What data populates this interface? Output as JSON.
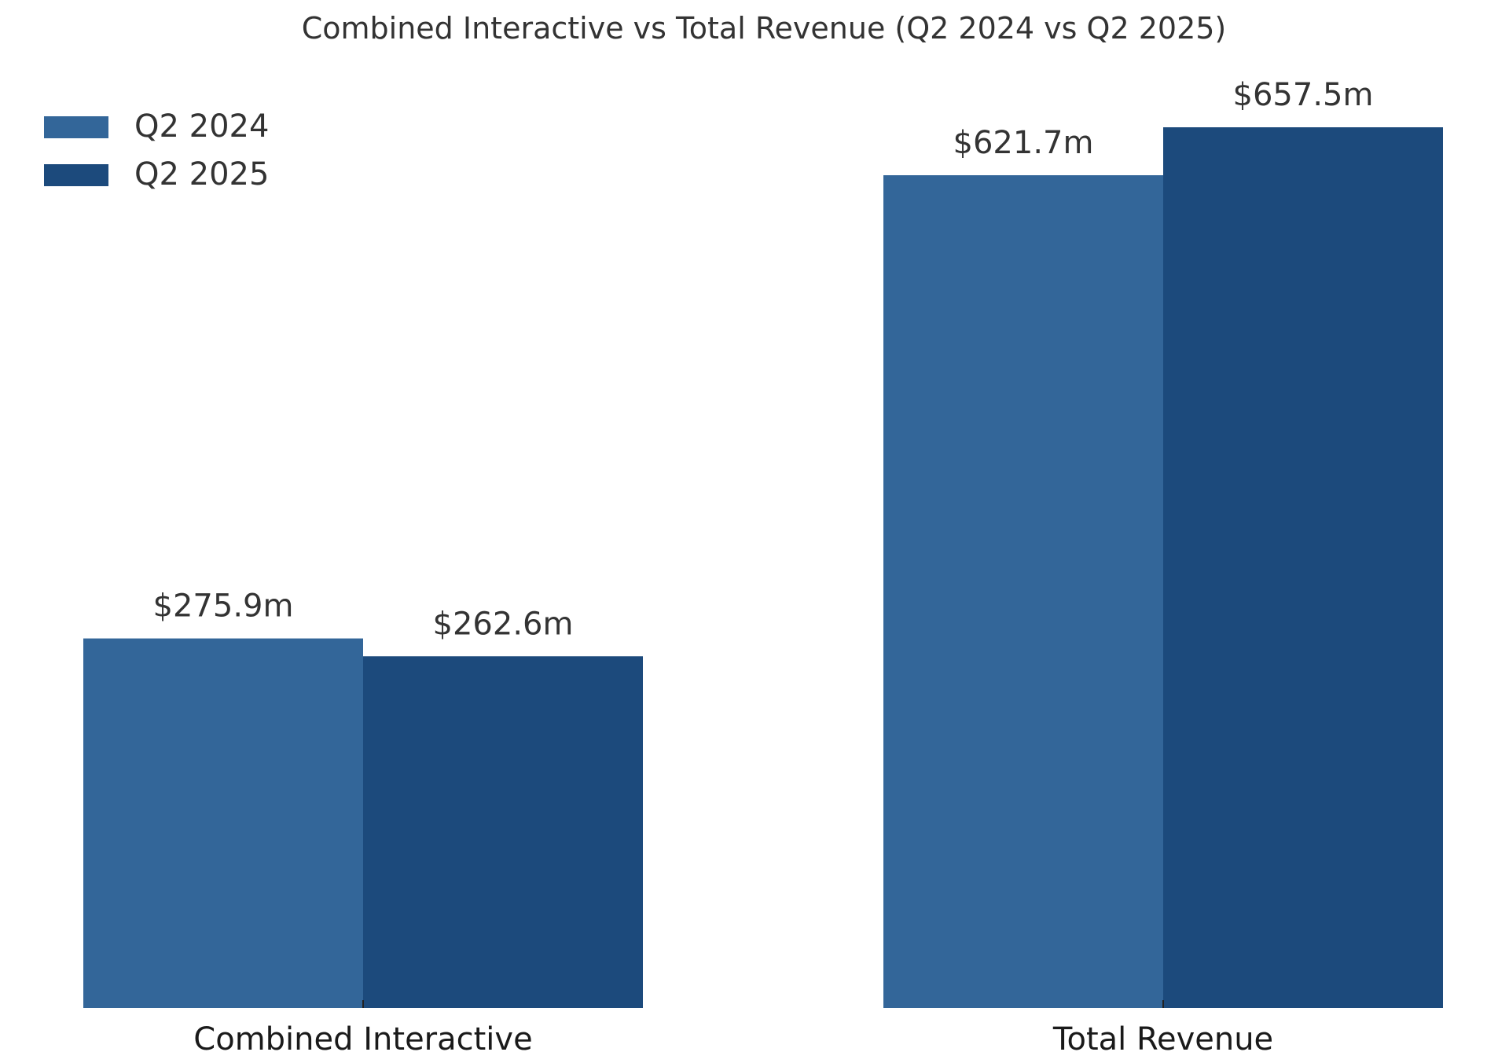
{
  "chart_data": {
    "type": "bar",
    "title": "Combined Interactive vs Total Revenue (Q2 2024 vs Q2 2025)",
    "xlabel": "",
    "ylabel": "",
    "categories": [
      "Combined Interactive",
      "Total Revenue"
    ],
    "series": [
      {
        "name": "Q2 2024",
        "color": "#336699",
        "values": [
          275.9,
          621.7
        ],
        "labels": [
          "$275.9m",
          "$621.7m"
        ]
      },
      {
        "name": "Q2 2025",
        "color": "#1c4a7c",
        "values": [
          262.6,
          657.5
        ],
        "labels": [
          "$262.6m",
          "$657.5m"
        ]
      }
    ],
    "ylim": [
      0,
      657.5
    ],
    "unit": "$m",
    "grid": false,
    "y_axis_visible": false,
    "legend": {
      "position": "top-left",
      "entries": [
        "Q2 2024",
        "Q2 2025"
      ]
    }
  }
}
